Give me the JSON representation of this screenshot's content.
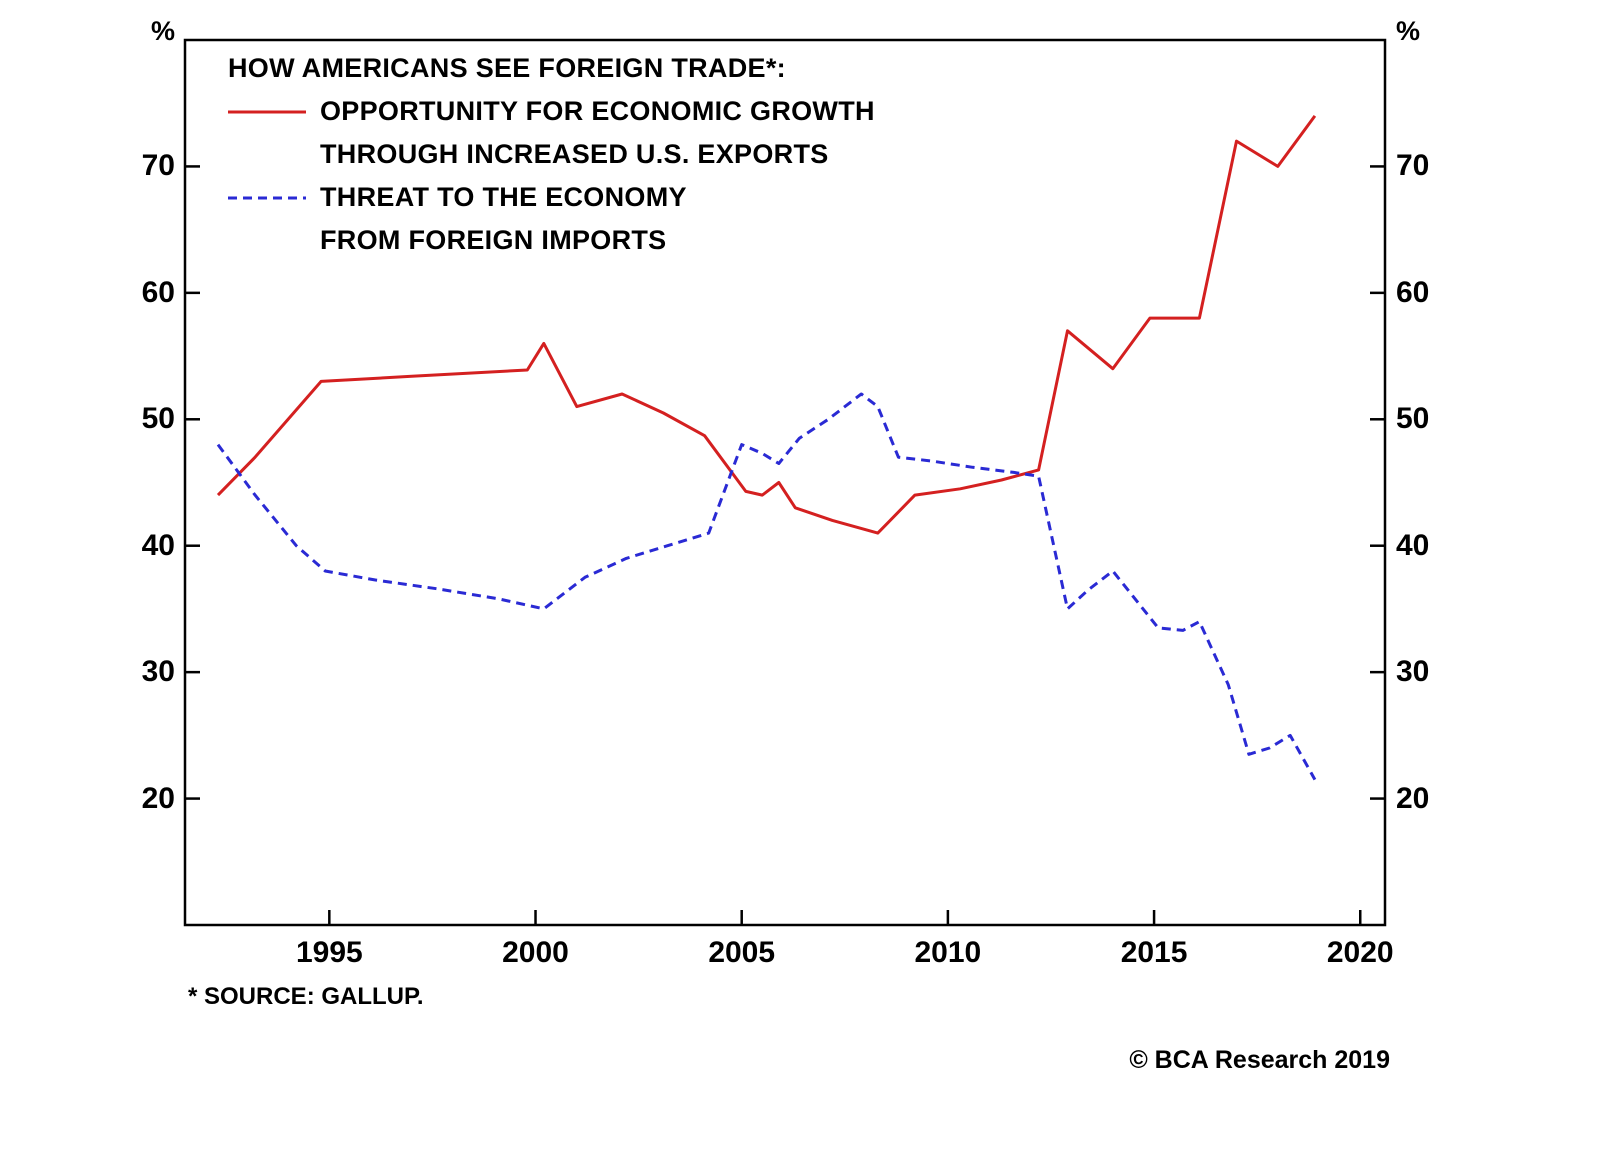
{
  "chart_data": {
    "type": "line",
    "title": "HOW AMERICANS SEE FOREIGN TRADE*:",
    "source_note": "*  SOURCE: GALLUP.",
    "copyright": "© BCA Research 2019",
    "grid": false,
    "legend_position": "top-left-inside",
    "axes": {
      "x": {
        "min": 1991.5,
        "max": 2020.6,
        "ticks": [
          1995,
          2000,
          2005,
          2010,
          2015,
          2020
        ]
      },
      "y": {
        "min": 10,
        "max": 80,
        "ticks": [
          20,
          30,
          40,
          50,
          60,
          70
        ],
        "unit": "%"
      }
    },
    "series": [
      {
        "name": "OPPORTUNITY FOR ECONOMIC GROWTH THROUGH INCREASED U.S. EXPORTS",
        "label_lines": [
          "OPPORTUNITY FOR ECONOMIC GROWTH",
          "THROUGH INCREASED U.S. EXPORTS"
        ],
        "color": "#d42020",
        "style": "solid",
        "points": [
          [
            1992.3,
            44
          ],
          [
            1993.2,
            47
          ],
          [
            1994.8,
            53
          ],
          [
            1997.0,
            53.4
          ],
          [
            1999.8,
            53.9
          ],
          [
            2000.2,
            56
          ],
          [
            2001.0,
            51
          ],
          [
            2002.1,
            52
          ],
          [
            2003.1,
            50.5
          ],
          [
            2004.1,
            48.7
          ],
          [
            2005.1,
            44.3
          ],
          [
            2005.5,
            44
          ],
          [
            2005.9,
            45
          ],
          [
            2006.3,
            43
          ],
          [
            2007.2,
            42
          ],
          [
            2008.3,
            41
          ],
          [
            2009.2,
            44
          ],
          [
            2010.3,
            44.5
          ],
          [
            2011.3,
            45.2
          ],
          [
            2012.2,
            46
          ],
          [
            2012.9,
            57
          ],
          [
            2014.0,
            54
          ],
          [
            2014.9,
            58
          ],
          [
            2016.1,
            58
          ],
          [
            2017.0,
            72
          ],
          [
            2018.0,
            70
          ],
          [
            2018.9,
            74
          ]
        ]
      },
      {
        "name": "THREAT TO THE ECONOMY FROM FOREIGN IMPORTS",
        "label_lines": [
          "THREAT TO THE ECONOMY",
          "FROM FOREIGN IMPORTS"
        ],
        "color": "#2a2ad4",
        "style": "dashed",
        "points": [
          [
            1992.3,
            48
          ],
          [
            1993.2,
            44
          ],
          [
            1994.2,
            40
          ],
          [
            1994.9,
            38
          ],
          [
            1996.1,
            37.3
          ],
          [
            1997.6,
            36.6
          ],
          [
            1999.1,
            35.8
          ],
          [
            2000.2,
            35
          ],
          [
            2001.2,
            37.5
          ],
          [
            2002.2,
            39
          ],
          [
            2003.2,
            40
          ],
          [
            2004.2,
            41
          ],
          [
            2005.0,
            48
          ],
          [
            2005.5,
            47.3
          ],
          [
            2005.9,
            46.5
          ],
          [
            2006.4,
            48.5
          ],
          [
            2007.1,
            50
          ],
          [
            2007.9,
            52
          ],
          [
            2008.3,
            51
          ],
          [
            2008.8,
            47
          ],
          [
            2009.6,
            46.7
          ],
          [
            2010.6,
            46.2
          ],
          [
            2011.6,
            45.8
          ],
          [
            2012.2,
            45.5
          ],
          [
            2012.9,
            35
          ],
          [
            2013.4,
            36.5
          ],
          [
            2014.0,
            38
          ],
          [
            2015.1,
            33.5
          ],
          [
            2015.7,
            33.3
          ],
          [
            2016.1,
            34
          ],
          [
            2016.8,
            29
          ],
          [
            2017.3,
            23.5
          ],
          [
            2017.8,
            24
          ],
          [
            2018.3,
            25
          ],
          [
            2018.9,
            21.5
          ]
        ]
      }
    ]
  }
}
